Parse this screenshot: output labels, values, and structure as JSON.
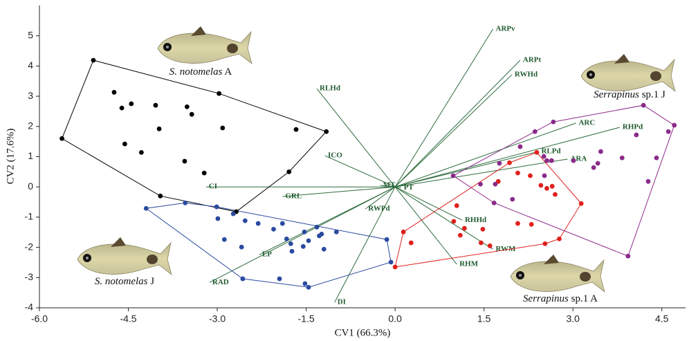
{
  "chart_data": {
    "type": "scatter",
    "xlabel": "CV1 (66.3%)",
    "ylabel": "CV2 (17.6%)",
    "xlim": [
      -6.0,
      4.9
    ],
    "ylim": [
      -4,
      6
    ],
    "xticks": [
      {
        "value": -6.0,
        "label": "-6.0"
      },
      -4.5,
      {
        "value": -3.0,
        "label": "-3.0"
      },
      -1.5,
      {
        "value": 0.0,
        "label": "0.0"
      },
      1.5,
      {
        "value": 3.0,
        "label": "3.0"
      },
      4.5
    ],
    "yticks": [
      -4,
      -3,
      -2,
      -1,
      0,
      1,
      2,
      3,
      4,
      5
    ],
    "series": [
      {
        "species": "S. notomelas",
        "group": "A",
        "color": "#000000",
        "x": [
          -5.09,
          -4.74,
          -4.61,
          -4.45,
          -4.04,
          -3.98,
          -3.51,
          -3.43,
          -2.97,
          -2.91,
          -4.56,
          -4.28,
          -3.55,
          -3.22,
          -5.62,
          -3.96,
          -2.68,
          -1.79,
          -1.67,
          -1.16
        ],
        "y": [
          4.19,
          3.13,
          2.61,
          2.75,
          2.7,
          1.92,
          2.65,
          2.4,
          3.09,
          1.95,
          1.42,
          1.14,
          0.85,
          0.46,
          1.6,
          -0.3,
          -0.82,
          0.5,
          1.9,
          1.83
        ]
      },
      {
        "species": "S. notomelas",
        "group": "J",
        "color": "#2a4aa0",
        "x": [
          -4.2,
          -3.54,
          -3.01,
          -2.99,
          -2.73,
          -2.53,
          -2.31,
          -2.05,
          -1.9,
          -1.83,
          -2.88,
          -2.59,
          -1.76,
          -1.74,
          -1.55,
          -1.53,
          -1.46,
          -1.32,
          -1.28,
          -1.24,
          -1.2,
          -0.99,
          -1.95,
          -1.52,
          -1.46,
          -2.57,
          -0.14,
          -0.07
        ],
        "y": [
          -0.71,
          -0.53,
          -0.66,
          -1.05,
          -0.89,
          -1.12,
          -1.21,
          -1.4,
          -1.21,
          -1.72,
          -1.74,
          -1.99,
          -1.88,
          -2.13,
          -1.97,
          -1.49,
          -1.78,
          -1.33,
          -1.62,
          -1.56,
          -2.06,
          -1.49,
          -3.04,
          -3.2,
          -3.32,
          -3.04,
          -1.74,
          -2.49
        ]
      },
      {
        "species": "Serrapinus",
        "group": "sp.1 A",
        "color": "#e0201c",
        "x": [
          0.0,
          0.14,
          0.27,
          0.99,
          1.04,
          1.1,
          1.17,
          1.48,
          1.45,
          1.6,
          1.74,
          1.93,
          2.07,
          2.07,
          2.3,
          2.28,
          2.39,
          2.46,
          2.56,
          2.65,
          2.7,
          2.53,
          2.77,
          3.14
        ],
        "y": [
          -2.65,
          -1.49,
          -1.85,
          -1.14,
          -0.62,
          -1.6,
          -1.37,
          -1.4,
          -1.85,
          -1.95,
          0.18,
          0.8,
          0.46,
          -1.21,
          -1.24,
          0.37,
          1.14,
          0.05,
          -0.05,
          0.02,
          -0.25,
          -1.88,
          -1.72,
          -0.55
        ]
      },
      {
        "species": "Serrapinus",
        "group": "sp.1 J",
        "color": "#8b2a8b",
        "x": [
          0.98,
          1.44,
          1.69,
          1.67,
          1.98,
          2.11,
          1.76,
          2.36,
          2.51,
          2.56,
          2.52,
          2.64,
          2.67,
          3.01,
          3.35,
          3.42,
          3.47,
          3.83,
          4.07,
          4.19,
          4.61,
          4.71,
          4.41,
          4.27,
          3.93
        ],
        "y": [
          0.37,
          0.09,
          0.09,
          -0.53,
          -0.41,
          1.33,
          0.78,
          1.83,
          1.01,
          0.87,
          0.37,
          0.87,
          2.15,
          0.87,
          0.64,
          0.78,
          1.17,
          0.96,
          1.72,
          2.7,
          1.83,
          2.04,
          0.96,
          0.18,
          -2.29
        ]
      }
    ],
    "vectors_color": "#2e6b3c",
    "vectors": [
      {
        "name": "ARPv",
        "x": 1.65,
        "y": 5.22
      },
      {
        "name": "ARPt",
        "x": 2.11,
        "y": 4.19
      },
      {
        "name": "RWHd",
        "x": 1.97,
        "y": 3.71
      },
      {
        "name": "RLHd",
        "x": -1.32,
        "y": 3.25
      },
      {
        "name": "ARC",
        "x": 3.05,
        "y": 2.11
      },
      {
        "name": "RHPd",
        "x": 3.79,
        "y": 1.97
      },
      {
        "name": "ICO",
        "x": -1.18,
        "y": 1.03
      },
      {
        "name": "RLPd",
        "x": 2.42,
        "y": 1.17
      },
      {
        "name": "ARA",
        "x": 2.91,
        "y": 0.92
      },
      {
        "name": "MT",
        "x": -0.25,
        "y": 0.05
      },
      {
        "name": "PT",
        "x": 0.1,
        "y": -0.03
      },
      {
        "name": "CI",
        "x": -3.19,
        "y": 0.0
      },
      {
        "name": "GRL",
        "x": -1.9,
        "y": -0.32
      },
      {
        "name": "RWPd",
        "x": -0.5,
        "y": -0.73
      },
      {
        "name": "RHHd",
        "x": 1.13,
        "y": -1.1
      },
      {
        "name": "RWM",
        "x": 1.65,
        "y": -2.06
      },
      {
        "name": "RHM",
        "x": 1.04,
        "y": -2.56
      },
      {
        "name": "EP",
        "x": -2.29,
        "y": -2.24
      },
      {
        "name": "RAD",
        "x": -3.13,
        "y": -3.16
      },
      {
        "name": "DI",
        "x": -1.02,
        "y": -3.82
      }
    ]
  }
}
